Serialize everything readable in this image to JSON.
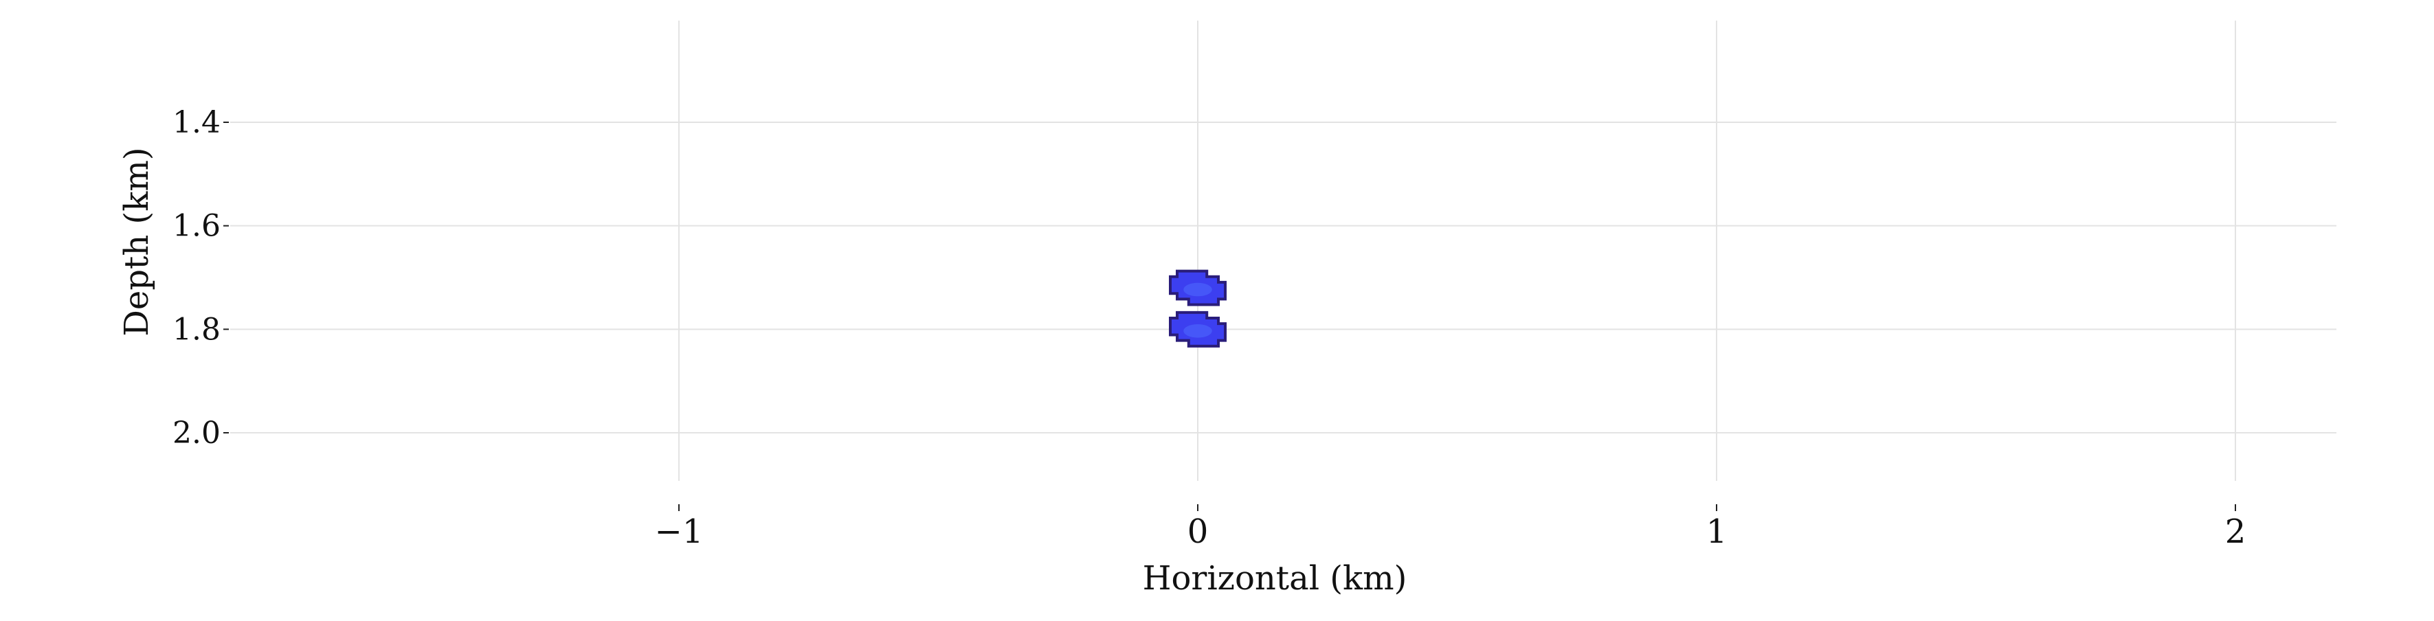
{
  "chart_data": {
    "type": "scatter",
    "title": "",
    "xlabel": "Horizontal (km)",
    "ylabel": "Depth (km)",
    "xlim": [
      -2.0,
      2.2
    ],
    "ylim": [
      2.12,
      1.2
    ],
    "y_inverted": true,
    "grid": true,
    "x_ticks": [
      -1,
      0,
      1,
      2
    ],
    "x_tick_labels": [
      "−1",
      "0",
      "1",
      "2"
    ],
    "y_ticks": [
      1.4,
      1.6,
      1.8,
      2.0
    ],
    "y_tick_labels": [
      "1.4",
      "1.6",
      "1.8",
      "2.0"
    ],
    "series": [
      {
        "points": [
          {
            "x": 0.0,
            "y": 1.72,
            "width": 0.1,
            "height": 0.065
          },
          {
            "x": 0.0,
            "y": 1.8,
            "width": 0.1,
            "height": 0.065
          }
        ],
        "color": "#3c3ff0",
        "edge_color": "#2a1d7a"
      }
    ],
    "grid_color": "#e3e3e3"
  }
}
